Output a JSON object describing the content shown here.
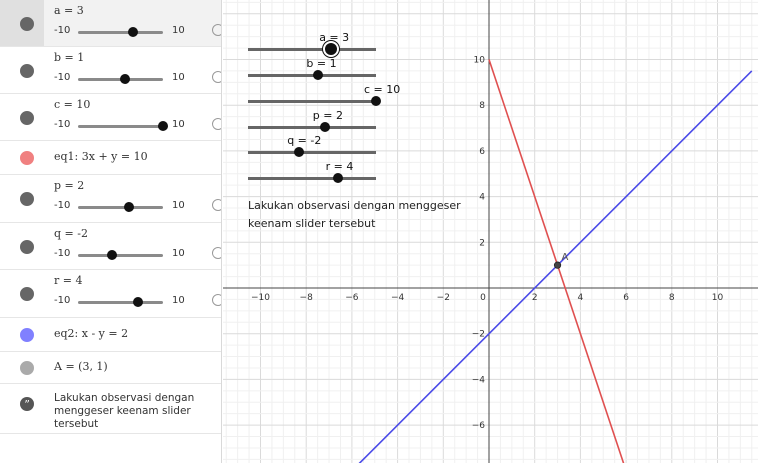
{
  "algebra": {
    "rows": [
      {
        "kind": "slider",
        "name": "a",
        "expr": "a = 3",
        "min": "-10",
        "max": "10",
        "value": 3,
        "color": "#666666",
        "selected": true
      },
      {
        "kind": "slider",
        "name": "b",
        "expr": "b = 1",
        "min": "-10",
        "max": "10",
        "value": 1,
        "color": "#666666"
      },
      {
        "kind": "slider",
        "name": "c",
        "expr": "c = 10",
        "min": "-10",
        "max": "10",
        "value": 10,
        "color": "#666666"
      },
      {
        "kind": "object",
        "name": "eq1",
        "expr": "eq1: 3x + y = 10",
        "color": "#f08080"
      },
      {
        "kind": "slider",
        "name": "p",
        "expr": "p = 2",
        "min": "-10",
        "max": "10",
        "value": 2,
        "color": "#666666"
      },
      {
        "kind": "slider",
        "name": "q",
        "expr": "q = -2",
        "min": "-10",
        "max": "10",
        "value": -2,
        "color": "#666666"
      },
      {
        "kind": "slider",
        "name": "r",
        "expr": "r = 4",
        "min": "-10",
        "max": "10",
        "value": 4,
        "color": "#666666"
      },
      {
        "kind": "object",
        "name": "eq2",
        "expr": "eq2: x - y = 2",
        "color": "#8080ff"
      },
      {
        "kind": "object",
        "name": "A",
        "expr": "A = (3, 1)",
        "color": "#aaaaaa"
      },
      {
        "kind": "text",
        "name": "note",
        "expr": "Lakukan observasi dengan menggeser keenam slider tersebut"
      }
    ]
  },
  "graphics": {
    "sliders": [
      {
        "label": "a = 3",
        "value": 3,
        "active": true
      },
      {
        "label": "b = 1",
        "value": 1
      },
      {
        "label": "c = 10",
        "value": 10
      },
      {
        "label": "p = 2",
        "value": 2
      },
      {
        "label": "q = -2",
        "value": -2
      },
      {
        "label": "r = 4",
        "value": 4
      }
    ],
    "text": "Lakukan observasi dengan menggeser keenam slider tersebut",
    "x_ticks": [
      "−10",
      "−8",
      "−6",
      "−4",
      "−2",
      "0",
      "2",
      "4",
      "6",
      "8",
      "10"
    ],
    "y_ticks": [
      "10",
      "8",
      "6",
      "4",
      "2",
      "−2",
      "−4",
      "−6"
    ],
    "point_label": "A",
    "line1_color": "#e05050",
    "line2_color": "#4a4ae8"
  },
  "chart_data": {
    "type": "line",
    "title": "",
    "xlabel": "",
    "ylabel": "",
    "xlim": [
      -12,
      11.5
    ],
    "ylim": [
      -8,
      11
    ],
    "grid": true,
    "series": [
      {
        "name": "eq1",
        "equation": "3x + y = 10",
        "x": [
          0,
          6
        ],
        "y": [
          10,
          -8
        ]
      },
      {
        "name": "eq2",
        "equation": "x - y = 2",
        "x": [
          -6,
          11.5
        ],
        "y": [
          -8,
          9.5
        ]
      }
    ],
    "points": [
      {
        "name": "A",
        "x": 3,
        "y": 1
      }
    ]
  }
}
